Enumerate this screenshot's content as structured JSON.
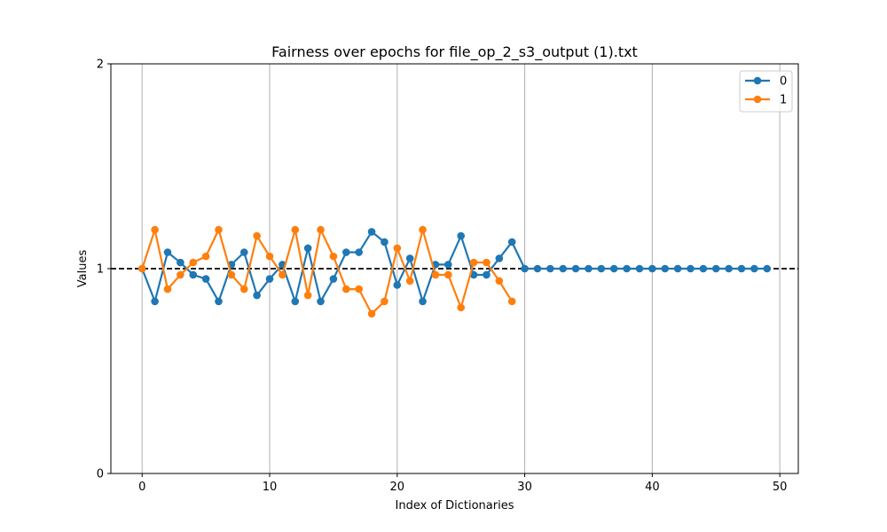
{
  "chart_data": {
    "type": "line",
    "title": "Fairness over epochs for file_op_2_s3_output (1).txt",
    "xlabel": "Index of Dictionaries",
    "ylabel": "Values",
    "xlim": [
      -2.45,
      51.45
    ],
    "ylim": [
      0,
      2
    ],
    "xticks": [
      0,
      10,
      20,
      30,
      40,
      50
    ],
    "yticks": [
      0,
      1,
      2
    ],
    "grid": "vertical",
    "legend": "top-right",
    "reference_line": {
      "y": 1,
      "color": "#000000",
      "style": "dashed"
    },
    "series": [
      {
        "name": "0",
        "color": "#1f77b4",
        "x": [
          0,
          1,
          2,
          3,
          4,
          5,
          6,
          7,
          8,
          9,
          10,
          11,
          12,
          13,
          14,
          15,
          16,
          17,
          18,
          19,
          20,
          21,
          22,
          23,
          24,
          25,
          26,
          27,
          28,
          29,
          30,
          31,
          32,
          33,
          34,
          35,
          36,
          37,
          38,
          39,
          40,
          41,
          42,
          43,
          44,
          45,
          46,
          47,
          48,
          49
        ],
        "y": [
          1.0,
          0.84,
          1.08,
          1.03,
          0.97,
          0.95,
          0.84,
          1.02,
          1.08,
          0.87,
          0.95,
          1.02,
          0.84,
          1.1,
          0.84,
          0.95,
          1.08,
          1.08,
          1.18,
          1.13,
          0.92,
          1.05,
          0.84,
          1.02,
          1.02,
          1.16,
          0.97,
          0.97,
          1.05,
          1.13,
          1.0,
          1.0,
          1.0,
          1.0,
          1.0,
          1.0,
          1.0,
          1.0,
          1.0,
          1.0,
          1.0,
          1.0,
          1.0,
          1.0,
          1.0,
          1.0,
          1.0,
          1.0,
          1.0,
          1.0
        ]
      },
      {
        "name": "1",
        "color": "#ff7f0e",
        "x": [
          0,
          1,
          2,
          3,
          4,
          5,
          6,
          7,
          8,
          9,
          10,
          11,
          12,
          13,
          14,
          15,
          16,
          17,
          18,
          19,
          20,
          21,
          22,
          23,
          24,
          25,
          26,
          27,
          28,
          29
        ],
        "y": [
          1.0,
          1.19,
          0.9,
          0.97,
          1.03,
          1.06,
          1.19,
          0.97,
          0.9,
          1.16,
          1.06,
          0.97,
          1.19,
          0.87,
          1.19,
          1.06,
          0.9,
          0.9,
          0.78,
          0.84,
          1.1,
          0.94,
          1.19,
          0.97,
          0.97,
          0.81,
          1.03,
          1.03,
          0.94,
          0.84
        ]
      }
    ]
  }
}
